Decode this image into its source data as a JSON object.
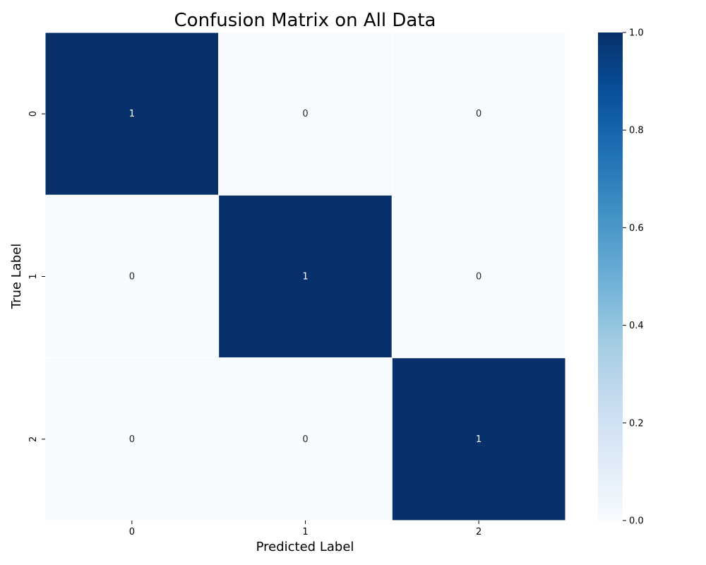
{
  "chart_data": {
    "type": "heatmap",
    "title": "Confusion Matrix on All Data",
    "xlabel": "Predicted Label",
    "ylabel": "True Label",
    "x_categories": [
      "0",
      "1",
      "2"
    ],
    "y_categories": [
      "0",
      "1",
      "2"
    ],
    "values": [
      [
        1,
        0,
        0
      ],
      [
        0,
        1,
        0
      ],
      [
        0,
        0,
        1
      ]
    ],
    "colormap": "Blues",
    "colorbar": {
      "range": [
        0.0,
        1.0
      ],
      "ticks": [
        "0.0",
        "0.2",
        "0.4",
        "0.6",
        "0.8",
        "1.0"
      ]
    },
    "colors": {
      "low": "#f7fbff",
      "high": "#08306b"
    }
  }
}
